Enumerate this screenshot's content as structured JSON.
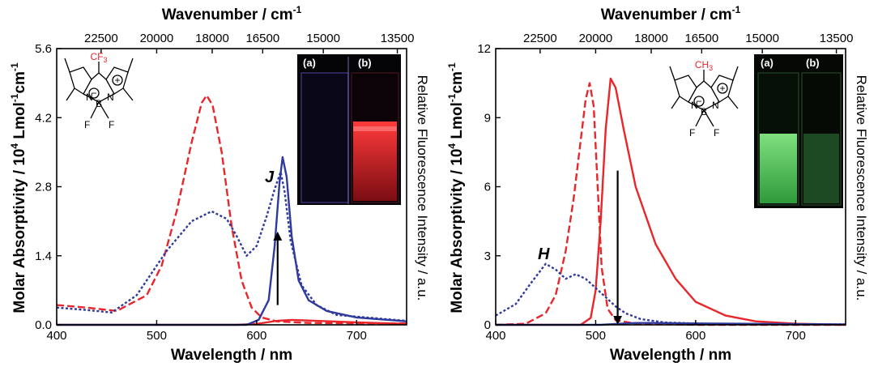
{
  "chart_data": [
    {
      "type": "line",
      "panel": "left",
      "title": "",
      "xlabel": "Wavelength / nm",
      "top_xlabel": "Wavenumber / cm",
      "top_xlabel_sup": "-1",
      "ylabel": "Molar Absorptivity / 10",
      "ylabel_sup": "4",
      "ylabel_unit": " Lmol",
      "ylabel_sup2": "-1",
      "ylabel_unit2": "cm",
      "ylabel_sup3": "-1",
      "y2label": "Relative Fluorescence Intensity / a.u.",
      "xlim": [
        400,
        750
      ],
      "ylim": [
        0,
        5.6
      ],
      "xticks": [
        400,
        500,
        600,
        700
      ],
      "yticks": [
        "0.0",
        "1.4",
        "2.8",
        "4.2",
        "5.6"
      ],
      "top_ticks": [
        {
          "label": "22500",
          "wavenumber": 22500
        },
        {
          "label": "20000",
          "wavenumber": 20000
        },
        {
          "label": "18000",
          "wavenumber": 18000
        },
        {
          "label": "16500",
          "wavenumber": 16500
        },
        {
          "label": "15000",
          "wavenumber": 15000
        },
        {
          "label": "13500",
          "wavenumber": 13500
        }
      ],
      "annotations": {
        "band": "J"
      },
      "molecule": {
        "substituent": "CF",
        "substituent_sub": "3",
        "n1": "N",
        "n2": "N",
        "b": "B",
        "f1": "F",
        "f2": "F",
        "minus": "−",
        "plus": "+"
      },
      "inset": {
        "a": "(a)",
        "b": "(b)"
      },
      "arrow": {
        "from": 0.4,
        "to": 1.8,
        "at": 621,
        "direction": "up"
      },
      "series": [
        {
          "name": "absorption (red dashed)",
          "color": "#e8262b",
          "style": "dashed",
          "x": [
            400,
            430,
            460,
            490,
            505,
            520,
            535,
            545,
            550,
            556,
            565,
            575,
            585,
            595,
            605,
            620,
            650,
            700,
            750
          ],
          "y": [
            0.4,
            0.35,
            0.28,
            0.6,
            1.2,
            2.3,
            3.7,
            4.5,
            4.65,
            4.45,
            3.5,
            2.0,
            0.9,
            0.35,
            0.15,
            0.07,
            0.04,
            0.03,
            0.03
          ]
        },
        {
          "name": "fluorescence (red solid)",
          "color": "#e8262b",
          "style": "solid",
          "x": [
            400,
            580,
            600,
            610,
            620,
            635,
            660,
            700,
            750
          ],
          "y": [
            0,
            0,
            0.02,
            0.05,
            0.08,
            0.1,
            0.08,
            0.05,
            0.02
          ]
        },
        {
          "name": "absorption (blue dotted)",
          "color": "#2e3a9c",
          "style": "dotted",
          "x": [
            400,
            430,
            455,
            480,
            510,
            535,
            555,
            570,
            580,
            590,
            600,
            610,
            618,
            624,
            628,
            634,
            645,
            660,
            680,
            750
          ],
          "y": [
            0.35,
            0.3,
            0.25,
            0.6,
            1.5,
            2.1,
            2.3,
            2.15,
            1.8,
            1.4,
            1.6,
            2.2,
            2.75,
            3.1,
            2.7,
            1.7,
            0.8,
            0.4,
            0.2,
            0.08
          ]
        },
        {
          "name": "fluorescence (blue solid)",
          "color": "#2e3a9c",
          "style": "solid",
          "x": [
            400,
            590,
            602,
            612,
            618,
            623,
            626,
            630,
            635,
            642,
            652,
            670,
            700,
            750
          ],
          "y": [
            0,
            0,
            0.1,
            0.5,
            1.6,
            2.9,
            3.4,
            3.0,
            1.8,
            0.9,
            0.5,
            0.28,
            0.15,
            0.07
          ]
        }
      ]
    },
    {
      "type": "line",
      "panel": "right",
      "title": "",
      "xlabel": "Wavelength / nm",
      "top_xlabel": "Wavenumber / cm",
      "top_xlabel_sup": "-1",
      "ylabel": "Molar Absorptivity / 10",
      "ylabel_sup": "4",
      "ylabel_unit": " Lmol",
      "ylabel_sup2": "-1",
      "ylabel_unit2": "cm",
      "ylabel_sup3": "-1",
      "y2label": "Relative Fluorescence Intensity / a.u.",
      "xlim": [
        400,
        750
      ],
      "ylim": [
        0,
        12
      ],
      "xticks": [
        400,
        500,
        600,
        700
      ],
      "yticks": [
        "0",
        "3",
        "6",
        "9",
        "12"
      ],
      "top_ticks": [
        {
          "label": "22500",
          "wavenumber": 22500
        },
        {
          "label": "20000",
          "wavenumber": 20000
        },
        {
          "label": "18000",
          "wavenumber": 18000
        },
        {
          "label": "16500",
          "wavenumber": 16500
        },
        {
          "label": "15000",
          "wavenumber": 15000
        },
        {
          "label": "13500",
          "wavenumber": 13500
        }
      ],
      "annotations": {
        "band": "H"
      },
      "molecule": {
        "substituent": "CH",
        "substituent_sub": "3",
        "n1": "N",
        "n2": "N",
        "b": "B",
        "f1": "F",
        "f2": "F",
        "minus": "−",
        "plus": "+"
      },
      "inset": {
        "a": "(a)",
        "b": "(b)"
      },
      "arrow": {
        "from": 6.7,
        "to": 0.2,
        "at": 522,
        "direction": "down"
      },
      "series": [
        {
          "name": "absorption (red dashed)",
          "color": "#e8262b",
          "style": "dashed",
          "x": [
            400,
            430,
            450,
            460,
            470,
            478,
            485,
            490,
            494,
            498,
            502,
            506,
            512,
            520,
            540,
            600,
            750
          ],
          "y": [
            0,
            0.05,
            0.5,
            1.3,
            3.2,
            5.5,
            8.0,
            9.8,
            10.5,
            9.5,
            6.0,
            2.5,
            0.7,
            0.2,
            0.05,
            0,
            0
          ]
        },
        {
          "name": "fluorescence (red solid)",
          "color": "#e8262b",
          "style": "solid",
          "x": [
            400,
            485,
            495,
            500,
            505,
            510,
            515,
            520,
            528,
            540,
            560,
            580,
            600,
            630,
            660,
            700,
            750
          ],
          "y": [
            0,
            0,
            0.3,
            1.5,
            4.5,
            8.5,
            10.7,
            10.3,
            8.5,
            6.0,
            3.5,
            2.0,
            1.0,
            0.4,
            0.15,
            0.05,
            0
          ]
        },
        {
          "name": "absorption (blue dotted)",
          "color": "#2e3a9c",
          "style": "dotted",
          "x": [
            400,
            420,
            435,
            450,
            460,
            470,
            480,
            490,
            500,
            510,
            520,
            530,
            545,
            570,
            620,
            700,
            750
          ],
          "y": [
            0.4,
            0.9,
            1.8,
            2.65,
            2.4,
            2.0,
            2.2,
            2.0,
            1.6,
            1.2,
            0.8,
            0.5,
            0.25,
            0.1,
            0.04,
            0.02,
            0.02
          ]
        },
        {
          "name": "fluorescence (blue solid)",
          "color": "#2e3a9c",
          "style": "solid",
          "x": [
            400,
            505,
            520,
            540,
            560,
            600,
            700,
            750
          ],
          "y": [
            0,
            0,
            0.04,
            0.08,
            0.08,
            0.06,
            0.03,
            0.02
          ]
        }
      ]
    }
  ]
}
